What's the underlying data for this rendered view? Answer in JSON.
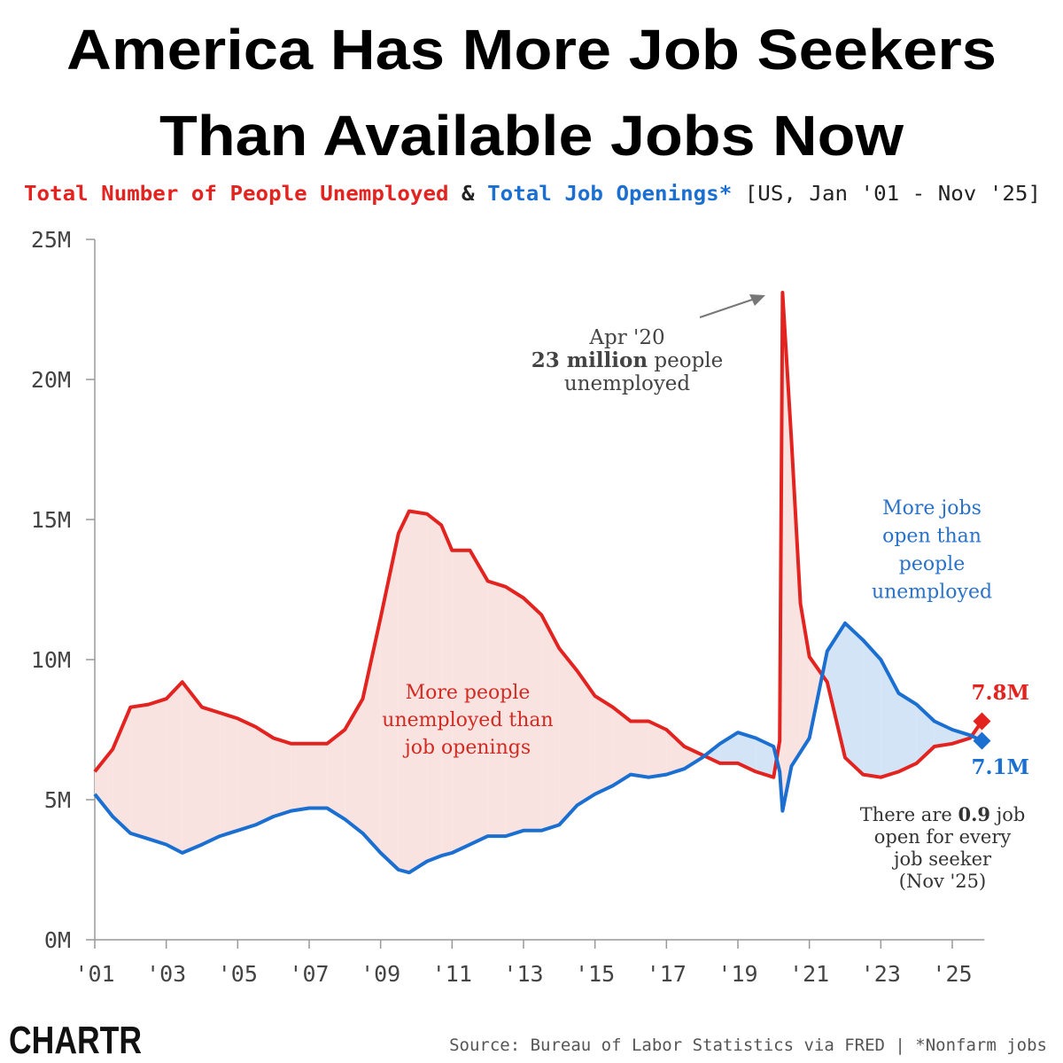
{
  "chart_data": {
    "type": "line",
    "title": [
      "America Has More Job Seekers",
      "Than Available Jobs Now"
    ],
    "subtitle_joiner": "&",
    "subtitle": "[US, Jan '01 - Nov '25]",
    "x": [
      2001.0,
      2001.5,
      2002.0,
      2002.5,
      2003.0,
      2003.45,
      2004.0,
      2004.5,
      2005.0,
      2005.5,
      2006.0,
      2006.5,
      2007.0,
      2007.5,
      2008.0,
      2008.5,
      2009.0,
      2009.5,
      2009.8,
      2010.3,
      2010.7,
      2011.0,
      2011.5,
      2012.0,
      2012.5,
      2013.0,
      2013.5,
      2014.0,
      2014.5,
      2015.0,
      2015.5,
      2016.0,
      2016.5,
      2017.0,
      2017.5,
      2018.0,
      2018.5,
      2019.0,
      2019.5,
      2020.0,
      2020.17,
      2020.25,
      2020.5,
      2020.75,
      2021.0,
      2021.5,
      2022.0,
      2022.5,
      2023.0,
      2023.5,
      2024.0,
      2024.5,
      2025.0,
      2025.5,
      2025.83
    ],
    "series": [
      {
        "name": "Total Number of People Unemployed",
        "color": "#e3231f",
        "fill": "#f9e3e1",
        "end_label": "7.8M",
        "values": [
          6.0,
          6.8,
          8.3,
          8.4,
          8.6,
          9.2,
          8.3,
          8.1,
          7.9,
          7.6,
          7.2,
          7.0,
          7.0,
          7.0,
          7.5,
          8.6,
          11.5,
          14.5,
          15.3,
          15.2,
          14.8,
          13.9,
          13.9,
          12.8,
          12.6,
          12.2,
          11.6,
          10.4,
          9.6,
          8.7,
          8.3,
          7.8,
          7.8,
          7.5,
          6.9,
          6.6,
          6.3,
          6.3,
          6.0,
          5.8,
          7.1,
          23.1,
          17.8,
          12.0,
          10.1,
          9.2,
          6.5,
          5.9,
          5.8,
          6.0,
          6.3,
          6.9,
          7.0,
          7.2,
          7.8
        ]
      },
      {
        "name": "Total Job Openings*",
        "color": "#1a6fd1",
        "fill": "#d3e4f7",
        "end_label": "7.1M",
        "values": [
          5.2,
          4.4,
          3.8,
          3.6,
          3.4,
          3.1,
          3.4,
          3.7,
          3.9,
          4.1,
          4.4,
          4.6,
          4.7,
          4.7,
          4.3,
          3.8,
          3.1,
          2.5,
          2.4,
          2.8,
          3.0,
          3.1,
          3.4,
          3.7,
          3.7,
          3.9,
          3.9,
          4.1,
          4.8,
          5.2,
          5.5,
          5.9,
          5.8,
          5.9,
          6.1,
          6.5,
          7.0,
          7.4,
          7.2,
          6.9,
          6.0,
          4.6,
          6.2,
          6.7,
          7.2,
          10.3,
          11.3,
          10.7,
          10.0,
          8.8,
          8.4,
          7.8,
          7.5,
          7.3,
          7.1
        ]
      }
    ],
    "xlim": [
      2001,
      2025.9
    ],
    "ylim": [
      0,
      25
    ],
    "xticks": [
      {
        "value": 2001,
        "label": "'01"
      },
      {
        "value": 2003,
        "label": "'03"
      },
      {
        "value": 2005,
        "label": "'05"
      },
      {
        "value": 2007,
        "label": "'07"
      },
      {
        "value": 2009,
        "label": "'09"
      },
      {
        "value": 2011,
        "label": "'11"
      },
      {
        "value": 2013,
        "label": "'13"
      },
      {
        "value": 2015,
        "label": "'15"
      },
      {
        "value": 2017,
        "label": "'17"
      },
      {
        "value": 2019,
        "label": "'19"
      },
      {
        "value": 2021,
        "label": "'21"
      },
      {
        "value": 2023,
        "label": "'23"
      },
      {
        "value": 2025,
        "label": "'25"
      }
    ],
    "yticks": [
      {
        "value": 0,
        "label": "0M"
      },
      {
        "value": 5,
        "label": "5M"
      },
      {
        "value": 10,
        "label": "10M"
      },
      {
        "value": 15,
        "label": "15M"
      },
      {
        "value": 20,
        "label": "20M"
      },
      {
        "value": 25,
        "label": "25M"
      }
    ],
    "annotations": {
      "spike": {
        "lines": [
          [
            "Apr '20"
          ],
          [
            "23 million",
            " people"
          ],
          [
            "unemployed"
          ]
        ]
      },
      "gap_red": {
        "lines": [
          [
            "More people"
          ],
          [
            "unemployed than"
          ],
          [
            "job openings"
          ]
        ]
      },
      "gap_blue": {
        "lines": [
          [
            "More jobs"
          ],
          [
            "open than"
          ],
          [
            "people"
          ],
          [
            "unemployed"
          ]
        ]
      },
      "ratio": {
        "lines": [
          [
            "There are ",
            "0.9",
            " job"
          ],
          [
            "open for every"
          ],
          [
            "job seeker"
          ],
          [
            "(Nov '25)"
          ]
        ]
      }
    },
    "source": "Source: Bureau of Labor Statistics via FRED | *Nonfarm jobs",
    "logo": "CHARTR"
  }
}
